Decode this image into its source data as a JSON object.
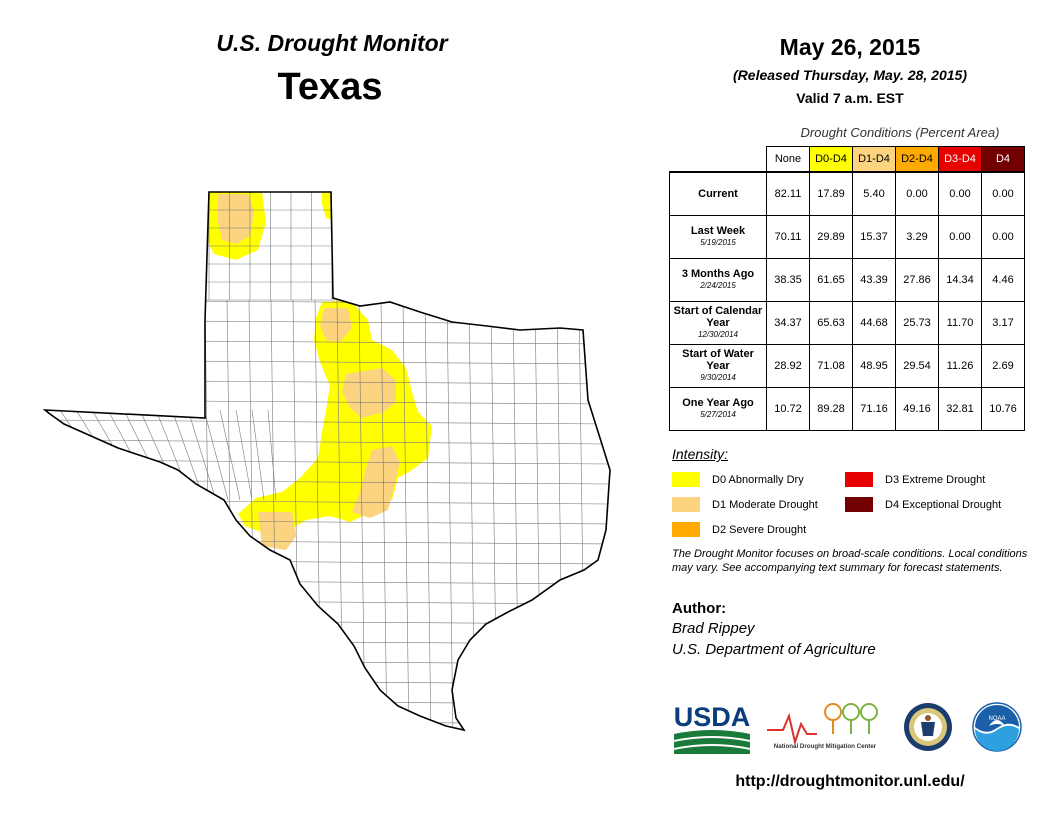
{
  "header": {
    "monitor_title": "U.S. Drought Monitor",
    "state": "Texas",
    "date": "May 26, 2015",
    "released": "(Released Thursday, May. 28, 2015)",
    "valid": "Valid 7 a.m. EST"
  },
  "table": {
    "title": "Drought Conditions (Percent Area)",
    "columns": [
      {
        "label": "None",
        "color": "#ffffff",
        "text_color": "#000000"
      },
      {
        "label": "D0-D4",
        "color": "#ffff00",
        "text_color": "#000000"
      },
      {
        "label": "D1-D4",
        "color": "#fcd37f",
        "text_color": "#000000"
      },
      {
        "label": "D2-D4",
        "color": "#ffaa00",
        "text_color": "#000000"
      },
      {
        "label": "D3-D4",
        "color": "#e60000",
        "text_color": "#ffffff"
      },
      {
        "label": "D4",
        "color": "#730000",
        "text_color": "#ffffff"
      }
    ],
    "rows": [
      {
        "label": "Current",
        "date": "",
        "values": [
          "82.11",
          "17.89",
          "5.40",
          "0.00",
          "0.00",
          "0.00"
        ]
      },
      {
        "label": "Last Week",
        "date": "5/19/2015",
        "values": [
          "70.11",
          "29.89",
          "15.37",
          "3.29",
          "0.00",
          "0.00"
        ]
      },
      {
        "label": "3 Months Ago",
        "date": "2/24/2015",
        "values": [
          "38.35",
          "61.65",
          "43.39",
          "27.86",
          "14.34",
          "4.46"
        ]
      },
      {
        "label": "Start of Calendar Year",
        "date": "12/30/2014",
        "values": [
          "34.37",
          "65.63",
          "44.68",
          "25.73",
          "11.70",
          "3.17"
        ]
      },
      {
        "label": "Start of Water Year",
        "date": "9/30/2014",
        "values": [
          "28.92",
          "71.08",
          "48.95",
          "29.54",
          "11.26",
          "2.69"
        ]
      },
      {
        "label": "One Year Ago",
        "date": "5/27/2014",
        "values": [
          "10.72",
          "89.28",
          "71.16",
          "49.16",
          "32.81",
          "10.76"
        ]
      }
    ]
  },
  "legend": {
    "title": "Intensity:",
    "items": [
      {
        "label": "D0 Abnormally Dry",
        "color": "#ffff00"
      },
      {
        "label": "D1 Moderate Drought",
        "color": "#fcd37f"
      },
      {
        "label": "D2 Severe Drought",
        "color": "#ffaa00"
      },
      {
        "label": "D3 Extreme Drought",
        "color": "#e60000"
      },
      {
        "label": "D4 Exceptional Drought",
        "color": "#730000"
      }
    ]
  },
  "note": "The Drought Monitor focuses on broad-scale conditions. Local conditions may vary. See accompanying text summary for forecast statements.",
  "author": {
    "heading": "Author:",
    "name": "Brad Rippey",
    "org": "U.S. Department of Agriculture"
  },
  "logos": {
    "usda": "USDA",
    "ndmc": "National Drought Mitigation Center",
    "noaa": "NOAA"
  },
  "url": "http://droughtmonitor.unl.edu/"
}
